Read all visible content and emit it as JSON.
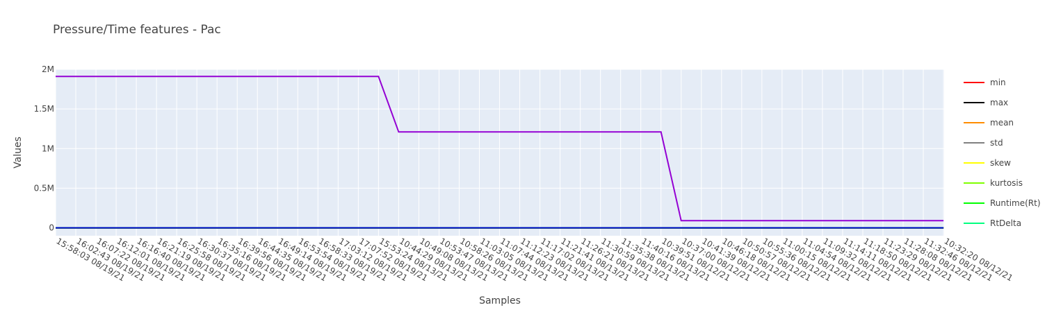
{
  "chart_data": {
    "type": "line",
    "title": "Pressure/Time features - Pac",
    "xlabel": "Samples",
    "ylabel": "Values",
    "ylim": [
      -100000,
      2000000
    ],
    "ytick_values": [
      0,
      500000,
      1000000,
      1500000,
      2000000
    ],
    "ytick_labels": [
      "0",
      "0.5M",
      "1M",
      "1.5M",
      "2M"
    ],
    "grid": true,
    "legend_position": "right",
    "categories": [
      "15:58:03 08/19/21",
      "16:02:43 08/19/21",
      "16:07:22 08/19/21",
      "16:12:01 08/19/21",
      "16:16:40 08/19/21",
      "16:21:19 08/19/21",
      "16:25:58 08/19/21",
      "16:30:37 08/19/21",
      "16:35:16 08/19/21",
      "16:39:56 08/19/21",
      "16:44:35 08/19/21",
      "16:49:14 08/19/21",
      "16:53:54 08/19/21",
      "16:58:33 08/19/21",
      "17:03:12 08/19/21",
      "17:07:52 08/19/21",
      "15:53:24 08/13/21",
      "10:44:29 08/13/21",
      "10:49:08 08/13/21",
      "10:53:47 08/13/21",
      "10:58:26 08/13/21",
      "11:03:05 08/13/21",
      "11:07:44 08/13/21",
      "11:12:23 08/13/21",
      "11:17:02 08/13/21",
      "11:21:41 08/13/21",
      "11:26:21 08/13/21",
      "11:30:59 08/13/21",
      "11:35:38 08/13/21",
      "11:40:16 08/13/21",
      "10:39:51 08/12/21",
      "10:37:00 08/12/21",
      "10:41:39 08/12/21",
      "10:46:18 08/12/21",
      "10:50:57 08/12/21",
      "10:55:36 08/12/21",
      "11:00:15 08/12/21",
      "11:04:54 08/12/21",
      "11:09:32 08/12/21",
      "11:14:11 08/12/21",
      "11:18:50 08/12/21",
      "11:23:29 08/12/21",
      "11:28:08 08/12/21",
      "11:32:46 08/12/21",
      "10:32:20 08/12/21"
    ],
    "series": [
      {
        "name": "min",
        "color": "#ff0000",
        "values": [
          0,
          0,
          0,
          0,
          0,
          0,
          0,
          0,
          0,
          0,
          0,
          0,
          0,
          0,
          0,
          0,
          0,
          0,
          0,
          0,
          0,
          0,
          0,
          0,
          0,
          0,
          0,
          0,
          0,
          0,
          0,
          0,
          0,
          0,
          0,
          0,
          0,
          0,
          0,
          0,
          0,
          0,
          0,
          0,
          0
        ]
      },
      {
        "name": "max",
        "color": "#000000",
        "values": [
          0,
          0,
          0,
          0,
          0,
          0,
          0,
          0,
          0,
          0,
          0,
          0,
          0,
          0,
          0,
          0,
          0,
          0,
          0,
          0,
          0,
          0,
          0,
          0,
          0,
          0,
          0,
          0,
          0,
          0,
          0,
          0,
          0,
          0,
          0,
          0,
          0,
          0,
          0,
          0,
          0,
          0,
          0,
          0,
          0
        ]
      },
      {
        "name": "mean",
        "color": "#ff8c00",
        "values": [
          0,
          0,
          0,
          0,
          0,
          0,
          0,
          0,
          0,
          0,
          0,
          0,
          0,
          0,
          0,
          0,
          0,
          0,
          0,
          0,
          0,
          0,
          0,
          0,
          0,
          0,
          0,
          0,
          0,
          0,
          0,
          0,
          0,
          0,
          0,
          0,
          0,
          0,
          0,
          0,
          0,
          0,
          0,
          0,
          0
        ]
      },
      {
        "name": "std",
        "color": "#808080",
        "values": [
          0,
          0,
          0,
          0,
          0,
          0,
          0,
          0,
          0,
          0,
          0,
          0,
          0,
          0,
          0,
          0,
          0,
          0,
          0,
          0,
          0,
          0,
          0,
          0,
          0,
          0,
          0,
          0,
          0,
          0,
          0,
          0,
          0,
          0,
          0,
          0,
          0,
          0,
          0,
          0,
          0,
          0,
          0,
          0,
          0
        ]
      },
      {
        "name": "skew",
        "color": "#ffff00",
        "values": [
          0,
          0,
          0,
          0,
          0,
          0,
          0,
          0,
          0,
          0,
          0,
          0,
          0,
          0,
          0,
          0,
          0,
          0,
          0,
          0,
          0,
          0,
          0,
          0,
          0,
          0,
          0,
          0,
          0,
          0,
          0,
          0,
          0,
          0,
          0,
          0,
          0,
          0,
          0,
          0,
          0,
          0,
          0,
          0,
          0
        ]
      },
      {
        "name": "kurtosis",
        "color": "#7fff00",
        "values": [
          0,
          0,
          0,
          0,
          0,
          0,
          0,
          0,
          0,
          0,
          0,
          0,
          0,
          0,
          0,
          0,
          0,
          0,
          0,
          0,
          0,
          0,
          0,
          0,
          0,
          0,
          0,
          0,
          0,
          0,
          0,
          0,
          0,
          0,
          0,
          0,
          0,
          0,
          0,
          0,
          0,
          0,
          0,
          0,
          0
        ]
      },
      {
        "name": "Runtime(Rt)",
        "color": "#00ff00",
        "values": [
          0,
          0,
          0,
          0,
          0,
          0,
          0,
          0,
          0,
          0,
          0,
          0,
          0,
          0,
          0,
          0,
          0,
          0,
          0,
          0,
          0,
          0,
          0,
          0,
          0,
          0,
          0,
          0,
          0,
          0,
          0,
          0,
          0,
          0,
          0,
          0,
          0,
          0,
          0,
          0,
          0,
          0,
          0,
          0,
          0
        ]
      },
      {
        "name": "RtDelta",
        "color": "#00ff7f",
        "values": [
          0,
          0,
          0,
          0,
          0,
          0,
          0,
          0,
          0,
          0,
          0,
          0,
          0,
          0,
          0,
          0,
          0,
          0,
          0,
          0,
          0,
          0,
          0,
          0,
          0,
          0,
          0,
          0,
          0,
          0,
          0,
          0,
          0,
          0,
          0,
          0,
          0,
          0,
          0,
          0,
          0,
          0,
          0,
          0,
          0
        ]
      },
      {
        "name": "",
        "color": "#0000cd",
        "values": [
          0,
          0,
          0,
          0,
          0,
          0,
          0,
          0,
          0,
          0,
          0,
          0,
          0,
          0,
          0,
          0,
          0,
          0,
          0,
          0,
          0,
          0,
          0,
          0,
          0,
          0,
          0,
          0,
          0,
          0,
          0,
          0,
          0,
          0,
          0,
          0,
          0,
          0,
          0,
          0,
          0,
          0,
          0,
          0,
          0
        ]
      },
      {
        "name": "",
        "color": "#9400d3",
        "values": [
          1910000,
          1910000,
          1910000,
          1910000,
          1910000,
          1910000,
          1910000,
          1910000,
          1910000,
          1910000,
          1910000,
          1910000,
          1910000,
          1910000,
          1910000,
          1910000,
          1910000,
          1210000,
          1210000,
          1210000,
          1210000,
          1210000,
          1210000,
          1210000,
          1210000,
          1210000,
          1210000,
          1210000,
          1210000,
          1210000,
          1210000,
          90000,
          90000,
          90000,
          90000,
          90000,
          90000,
          90000,
          90000,
          90000,
          90000,
          90000,
          90000,
          90000,
          90000
        ]
      }
    ]
  }
}
